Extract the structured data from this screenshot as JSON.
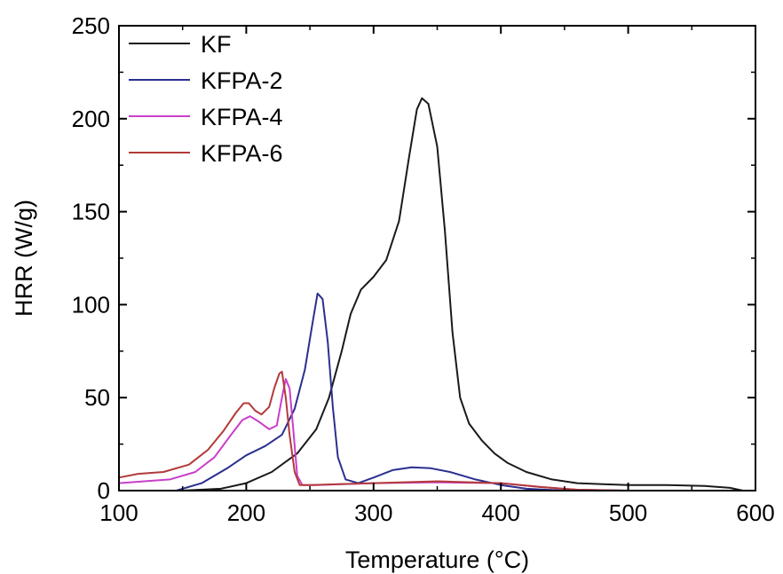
{
  "chart_data": {
    "type": "line",
    "title": "",
    "xlabel": "Temperature (°C)",
    "ylabel": "HRR (W/g)",
    "xlim": [
      100,
      600
    ],
    "ylim": [
      0,
      250
    ],
    "xticks": [
      100,
      200,
      300,
      400,
      500,
      600
    ],
    "yticks": [
      0,
      50,
      100,
      150,
      200,
      250
    ],
    "grid": false,
    "legend_position": "top-left",
    "series": [
      {
        "name": "KF",
        "color": "#1a1a1a",
        "points": [
          [
            100,
            0
          ],
          [
            150,
            0
          ],
          [
            180,
            1
          ],
          [
            200,
            4
          ],
          [
            220,
            10
          ],
          [
            240,
            20
          ],
          [
            255,
            33
          ],
          [
            265,
            50
          ],
          [
            275,
            75
          ],
          [
            282,
            95
          ],
          [
            290,
            108
          ],
          [
            300,
            115
          ],
          [
            310,
            124
          ],
          [
            320,
            145
          ],
          [
            328,
            180
          ],
          [
            334,
            205
          ],
          [
            338,
            211
          ],
          [
            343,
            208
          ],
          [
            350,
            185
          ],
          [
            356,
            140
          ],
          [
            362,
            85
          ],
          [
            368,
            50
          ],
          [
            375,
            36
          ],
          [
            385,
            27
          ],
          [
            395,
            20
          ],
          [
            405,
            15
          ],
          [
            420,
            10
          ],
          [
            440,
            6
          ],
          [
            460,
            4
          ],
          [
            480,
            3.5
          ],
          [
            500,
            3
          ],
          [
            530,
            3
          ],
          [
            560,
            2.5
          ],
          [
            580,
            1.5
          ],
          [
            590,
            0
          ],
          [
            600,
            0
          ]
        ]
      },
      {
        "name": "KFPA-2",
        "color": "#2a2f8f",
        "points": [
          [
            100,
            0
          ],
          [
            145,
            0
          ],
          [
            165,
            4
          ],
          [
            185,
            12
          ],
          [
            200,
            19
          ],
          [
            215,
            24
          ],
          [
            228,
            30
          ],
          [
            238,
            44
          ],
          [
            246,
            65
          ],
          [
            252,
            90
          ],
          [
            256,
            106
          ],
          [
            260,
            103
          ],
          [
            264,
            80
          ],
          [
            268,
            45
          ],
          [
            272,
            18
          ],
          [
            278,
            6
          ],
          [
            288,
            4
          ],
          [
            300,
            7
          ],
          [
            315,
            11
          ],
          [
            330,
            12.5
          ],
          [
            345,
            12
          ],
          [
            360,
            10
          ],
          [
            380,
            6
          ],
          [
            400,
            3
          ],
          [
            420,
            1
          ],
          [
            450,
            0
          ],
          [
            600,
            0
          ]
        ]
      },
      {
        "name": "KFPA-4",
        "color": "#c93fc9",
        "points": [
          [
            100,
            4
          ],
          [
            120,
            5
          ],
          [
            140,
            6
          ],
          [
            160,
            10
          ],
          [
            175,
            18
          ],
          [
            188,
            30
          ],
          [
            197,
            38
          ],
          [
            203,
            40
          ],
          [
            210,
            37
          ],
          [
            218,
            33
          ],
          [
            224,
            35
          ],
          [
            228,
            50
          ],
          [
            231,
            60
          ],
          [
            234,
            55
          ],
          [
            237,
            32
          ],
          [
            240,
            8
          ],
          [
            244,
            3
          ],
          [
            255,
            3
          ],
          [
            300,
            4
          ],
          [
            350,
            4.5
          ],
          [
            400,
            4
          ],
          [
            430,
            2
          ],
          [
            460,
            0.5
          ],
          [
            500,
            0
          ],
          [
            600,
            0
          ]
        ]
      },
      {
        "name": "KFPA-6",
        "color": "#b23a3a",
        "points": [
          [
            100,
            7
          ],
          [
            115,
            9
          ],
          [
            135,
            10
          ],
          [
            155,
            14
          ],
          [
            170,
            22
          ],
          [
            182,
            32
          ],
          [
            192,
            42
          ],
          [
            198,
            47
          ],
          [
            202,
            47
          ],
          [
            207,
            43
          ],
          [
            212,
            41
          ],
          [
            218,
            45
          ],
          [
            222,
            55
          ],
          [
            226,
            63
          ],
          [
            228,
            64
          ],
          [
            231,
            50
          ],
          [
            234,
            30
          ],
          [
            238,
            10
          ],
          [
            242,
            3
          ],
          [
            250,
            3
          ],
          [
            300,
            4
          ],
          [
            350,
            5
          ],
          [
            400,
            4
          ],
          [
            430,
            2
          ],
          [
            460,
            0.5
          ],
          [
            500,
            0
          ],
          [
            600,
            0
          ]
        ]
      }
    ]
  }
}
